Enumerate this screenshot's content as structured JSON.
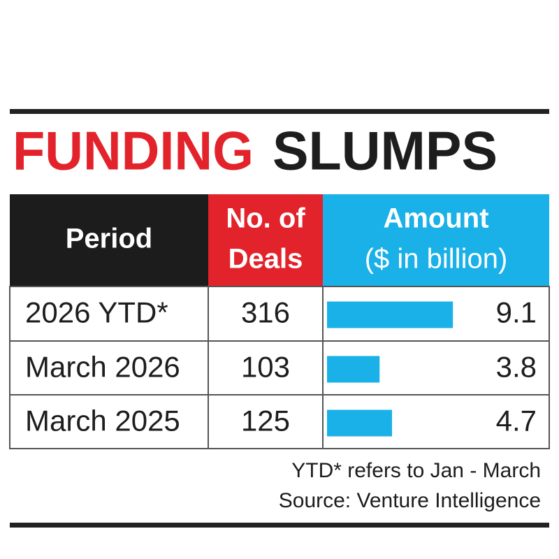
{
  "title": {
    "part1": "FUNDING",
    "part2": "SLUMPS"
  },
  "table": {
    "headers": [
      [
        "Period"
      ],
      [
        "No. of",
        "Deals"
      ],
      [
        "Amount",
        "($ in billion)"
      ]
    ],
    "rows": [
      {
        "period": "2026 YTD*",
        "deals": 316,
        "amount": 9.1
      },
      {
        "period": "March 2026",
        "deals": 103,
        "amount": 3.8
      },
      {
        "period": "March 2025",
        "deals": 125,
        "amount": 4.7
      }
    ]
  },
  "notes": [
    "YTD* refers to Jan - March",
    "Source: Venture Intelligence"
  ]
}
